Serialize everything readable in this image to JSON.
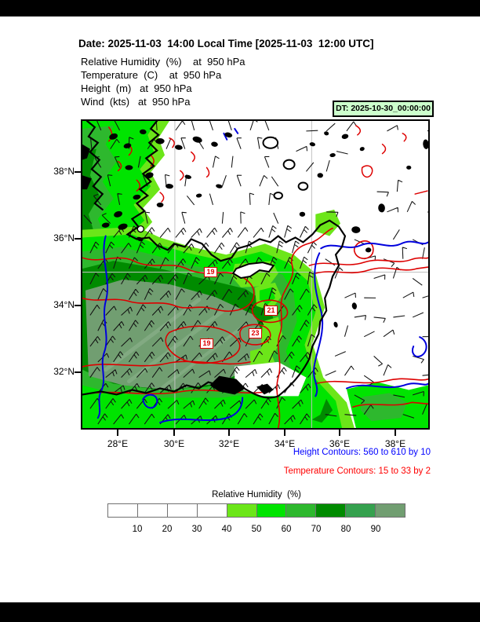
{
  "header": {
    "date_line": "Date: 2025-11-03  14:00 Local Time [2025-11-03  12:00 UTC]",
    "fields": [
      "Relative Humidity  (%)    at  950 hPa",
      "Temperature  (C)    at  950 hPa",
      "Height  (m)   at  950 hPa",
      "Wind  (kts)   at  950 hPa"
    ],
    "dt_badge": "DT: 2025-10-30_00:00:00"
  },
  "map": {
    "lat_ticks": [
      "38°N",
      "36°N",
      "34°N",
      "32°N"
    ],
    "lon_ticks": [
      "28°E",
      "30°E",
      "32°E",
      "34°E",
      "36°E",
      "38°E"
    ],
    "contour_labels": [
      {
        "text": "19"
      },
      {
        "text": "21"
      },
      {
        "text": "23"
      },
      {
        "text": "19"
      }
    ],
    "colors": {
      "height_contour": "#0000dd",
      "temperature_contour": "#dd0000",
      "coastline": "#000000",
      "gridline": "#c0c0c0"
    }
  },
  "legend": {
    "height_line": "Height Contours: 560 to 610 by 10",
    "temperature_line": "Temperature Contours: 15 to 33 by 2"
  },
  "colorbar": {
    "title": "Relative Humidity  (%)",
    "tick_labels": [
      "10",
      "20",
      "30",
      "40",
      "50",
      "60",
      "70",
      "80",
      "90"
    ],
    "cell_colors": [
      "#ffffff",
      "#ffffff",
      "#ffffff",
      "#ffffff",
      "#6ce619",
      "#00e400",
      "#2eb82e",
      "#008b00",
      "#35a14e",
      "#719e71"
    ]
  }
}
